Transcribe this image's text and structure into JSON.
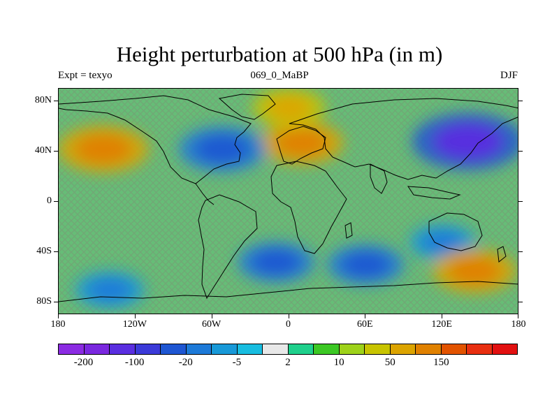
{
  "header": {
    "title": "Height perturbation at 500 hPa (in m)",
    "left_label": "Expt = texyo",
    "center_label": "069_0_MaBP",
    "right_label": "DJF"
  },
  "map": {
    "projection": "cylindrical-equidistant",
    "lon_range": [
      -180,
      180
    ],
    "lat_range": [
      -90,
      90
    ],
    "x_ticks": [
      {
        "lon": -180,
        "label": "180"
      },
      {
        "lon": -120,
        "label": "120W"
      },
      {
        "lon": -60,
        "label": "60W"
      },
      {
        "lon": 0,
        "label": "0"
      },
      {
        "lon": 60,
        "label": "60E"
      },
      {
        "lon": 120,
        "label": "120E"
      },
      {
        "lon": 180,
        "label": "180"
      }
    ],
    "y_ticks": [
      {
        "lat": 80,
        "label": "80N"
      },
      {
        "lat": 40,
        "label": "40N"
      },
      {
        "lat": 0,
        "label": "0"
      },
      {
        "lat": -40,
        "label": "40S"
      },
      {
        "lat": -80,
        "label": "80S"
      }
    ],
    "background_color": "#c7c400",
    "hatch_colors": [
      "#2a8fd6",
      "#17b8d8"
    ],
    "features": [
      {
        "name": "north-pacific-high",
        "lon": -145,
        "lat": 42,
        "value": 100
      },
      {
        "name": "north-atlantic-europe-high",
        "lon": 10,
        "lat": 47,
        "value": 80
      },
      {
        "name": "northeast-asia-high",
        "lon": 0,
        "lat": 75,
        "value": 50
      },
      {
        "name": "north-america-low",
        "lon": -52,
        "lat": 42,
        "value": -90
      },
      {
        "name": "siberia-pacific-low",
        "lon": 140,
        "lat": 48,
        "value": -160
      },
      {
        "name": "south-atlantic-low",
        "lon": -10,
        "lat": -48,
        "value": -60
      },
      {
        "name": "south-indian-low",
        "lon": 60,
        "lat": -50,
        "value": -60
      },
      {
        "name": "australia-low",
        "lon": 120,
        "lat": -32,
        "value": -30
      },
      {
        "name": "south-pacific-high",
        "lon": 145,
        "lat": -55,
        "value": 80
      },
      {
        "name": "southeast-pacific-low",
        "lon": -140,
        "lat": -70,
        "value": -40
      }
    ]
  },
  "colorbar": {
    "colors": [
      "#8b2be2",
      "#7a28df",
      "#5a2ee0",
      "#3b3ad8",
      "#1e56d2",
      "#1d7ad8",
      "#1899d8",
      "#18bde0",
      "#e8e8e8",
      "#1fd08c",
      "#3cc824",
      "#9ed21a",
      "#c8c400",
      "#dca400",
      "#e08100",
      "#e25300",
      "#e82f10",
      "#e21010"
    ],
    "labels": [
      {
        "label": "-200",
        "boundary": 1
      },
      {
        "label": "-100",
        "boundary": 3
      },
      {
        "label": "-20",
        "boundary": 5
      },
      {
        "label": "-5",
        "boundary": 7
      },
      {
        "label": "2",
        "boundary": 9
      },
      {
        "label": "10",
        "boundary": 11
      },
      {
        "label": "50",
        "boundary": 13
      },
      {
        "label": "150",
        "boundary": 15
      }
    ]
  }
}
